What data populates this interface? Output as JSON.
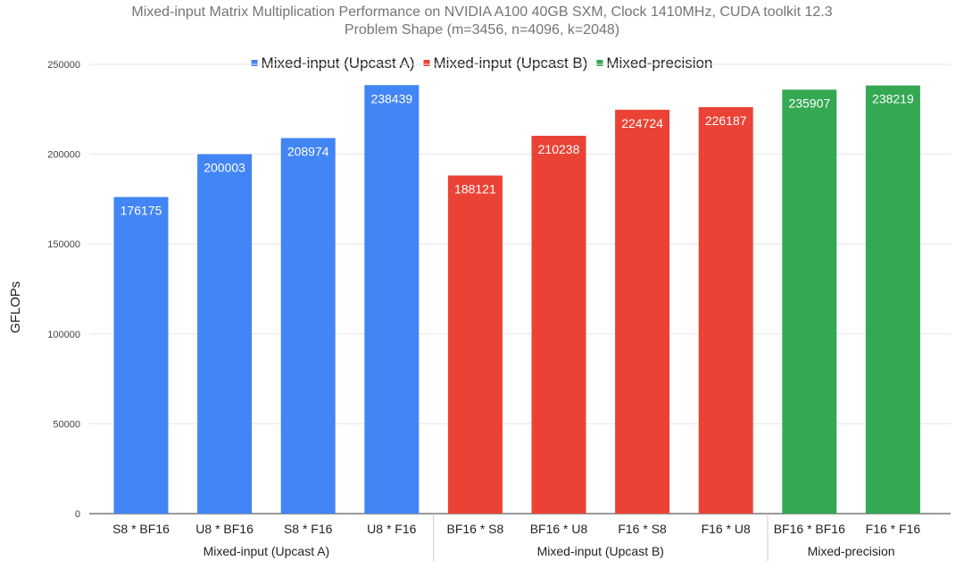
{
  "chart_data": {
    "type": "bar",
    "title": "Mixed-input Matrix Multiplication Performance on NVIDIA A100 40GB SXM, Clock 1410MHz, CUDA toolkit 12.3",
    "subtitle": "Problem Shape (m=3456, n=4096, k=2048)",
    "xlabel": "",
    "ylabel": "GFLOPs",
    "ylim": [
      0,
      250000
    ],
    "yticks": [
      0,
      50000,
      100000,
      150000,
      200000,
      250000
    ],
    "grid": true,
    "legend_position": "top",
    "categories": [
      "S8 * BF16",
      "U8 * BF16",
      "S8 * F16",
      "U8 * F16",
      "BF16 * S8",
      "BF16 * U8",
      "F16 * S8",
      "F16 * U8",
      "BF16 * BF16",
      "F16 * F16"
    ],
    "values": [
      176175,
      200003,
      208974,
      238439,
      188121,
      210238,
      224724,
      226187,
      235907,
      238219
    ],
    "series_index": [
      0,
      0,
      0,
      0,
      1,
      1,
      1,
      1,
      2,
      2
    ],
    "series": [
      {
        "name": "Mixed-input (Upcast A)",
        "color": "#4285f4"
      },
      {
        "name": "Mixed-input (Upcast B)",
        "color": "#ea4335"
      },
      {
        "name": "Mixed-precision",
        "color": "#34a853"
      }
    ],
    "groups": [
      "Mixed-input (Upcast A)",
      "Mixed-input (Upcast B)",
      "Mixed-precision"
    ]
  }
}
